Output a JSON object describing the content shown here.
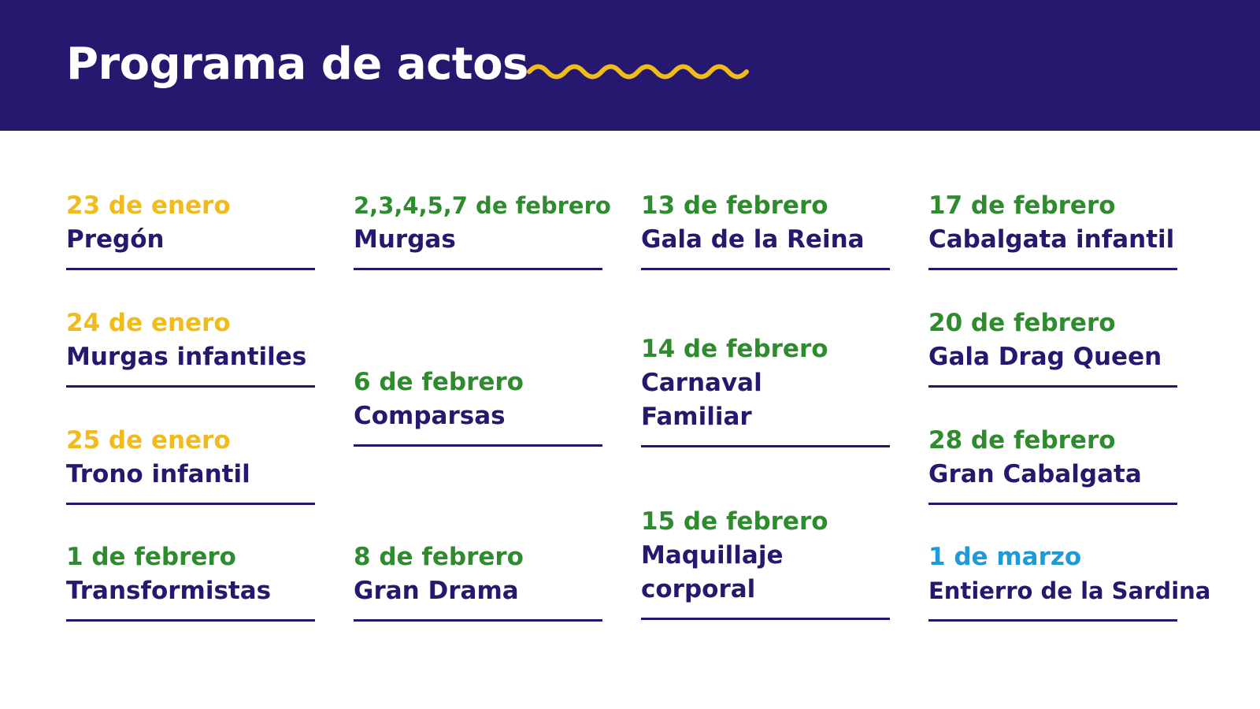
{
  "header": {
    "title": "Programa de actos",
    "wave_color": "#f0bb1c",
    "background": "#26186e"
  },
  "colors": {
    "enero": "#f0bb1c",
    "febrero": "#2e8b2e",
    "marzo": "#1f9ad6",
    "text": "#26186e"
  },
  "events": [
    {
      "date": "23 de enero",
      "name": "Pregón"
    },
    {
      "date": "24 de enero",
      "name": "Murgas infantiles"
    },
    {
      "date": "25 de enero",
      "name": "Trono infantil"
    },
    {
      "date": "1 de febrero",
      "name": "Transformistas"
    },
    {
      "date": "2,3,4,5,7 de febrero",
      "name": "Murgas"
    },
    {
      "date": "6 de febrero",
      "name": "Comparsas"
    },
    {
      "date": "8 de febrero",
      "name": "Gran Drama"
    },
    {
      "date": "13 de febrero",
      "name": "Gala de la Reina"
    },
    {
      "date": "14 de febrero",
      "name": "Carnaval Familiar"
    },
    {
      "date": "15 de febrero",
      "name": "Maquillaje corporal"
    },
    {
      "date": "17 de febrero",
      "name": "Cabalgata infantil"
    },
    {
      "date": "20 de febrero",
      "name": "Gala Drag Queen"
    },
    {
      "date": "28 de febrero",
      "name": "Gran Cabalgata"
    },
    {
      "date": "1 de marzo",
      "name": "Entierro de la Sardina"
    }
  ]
}
